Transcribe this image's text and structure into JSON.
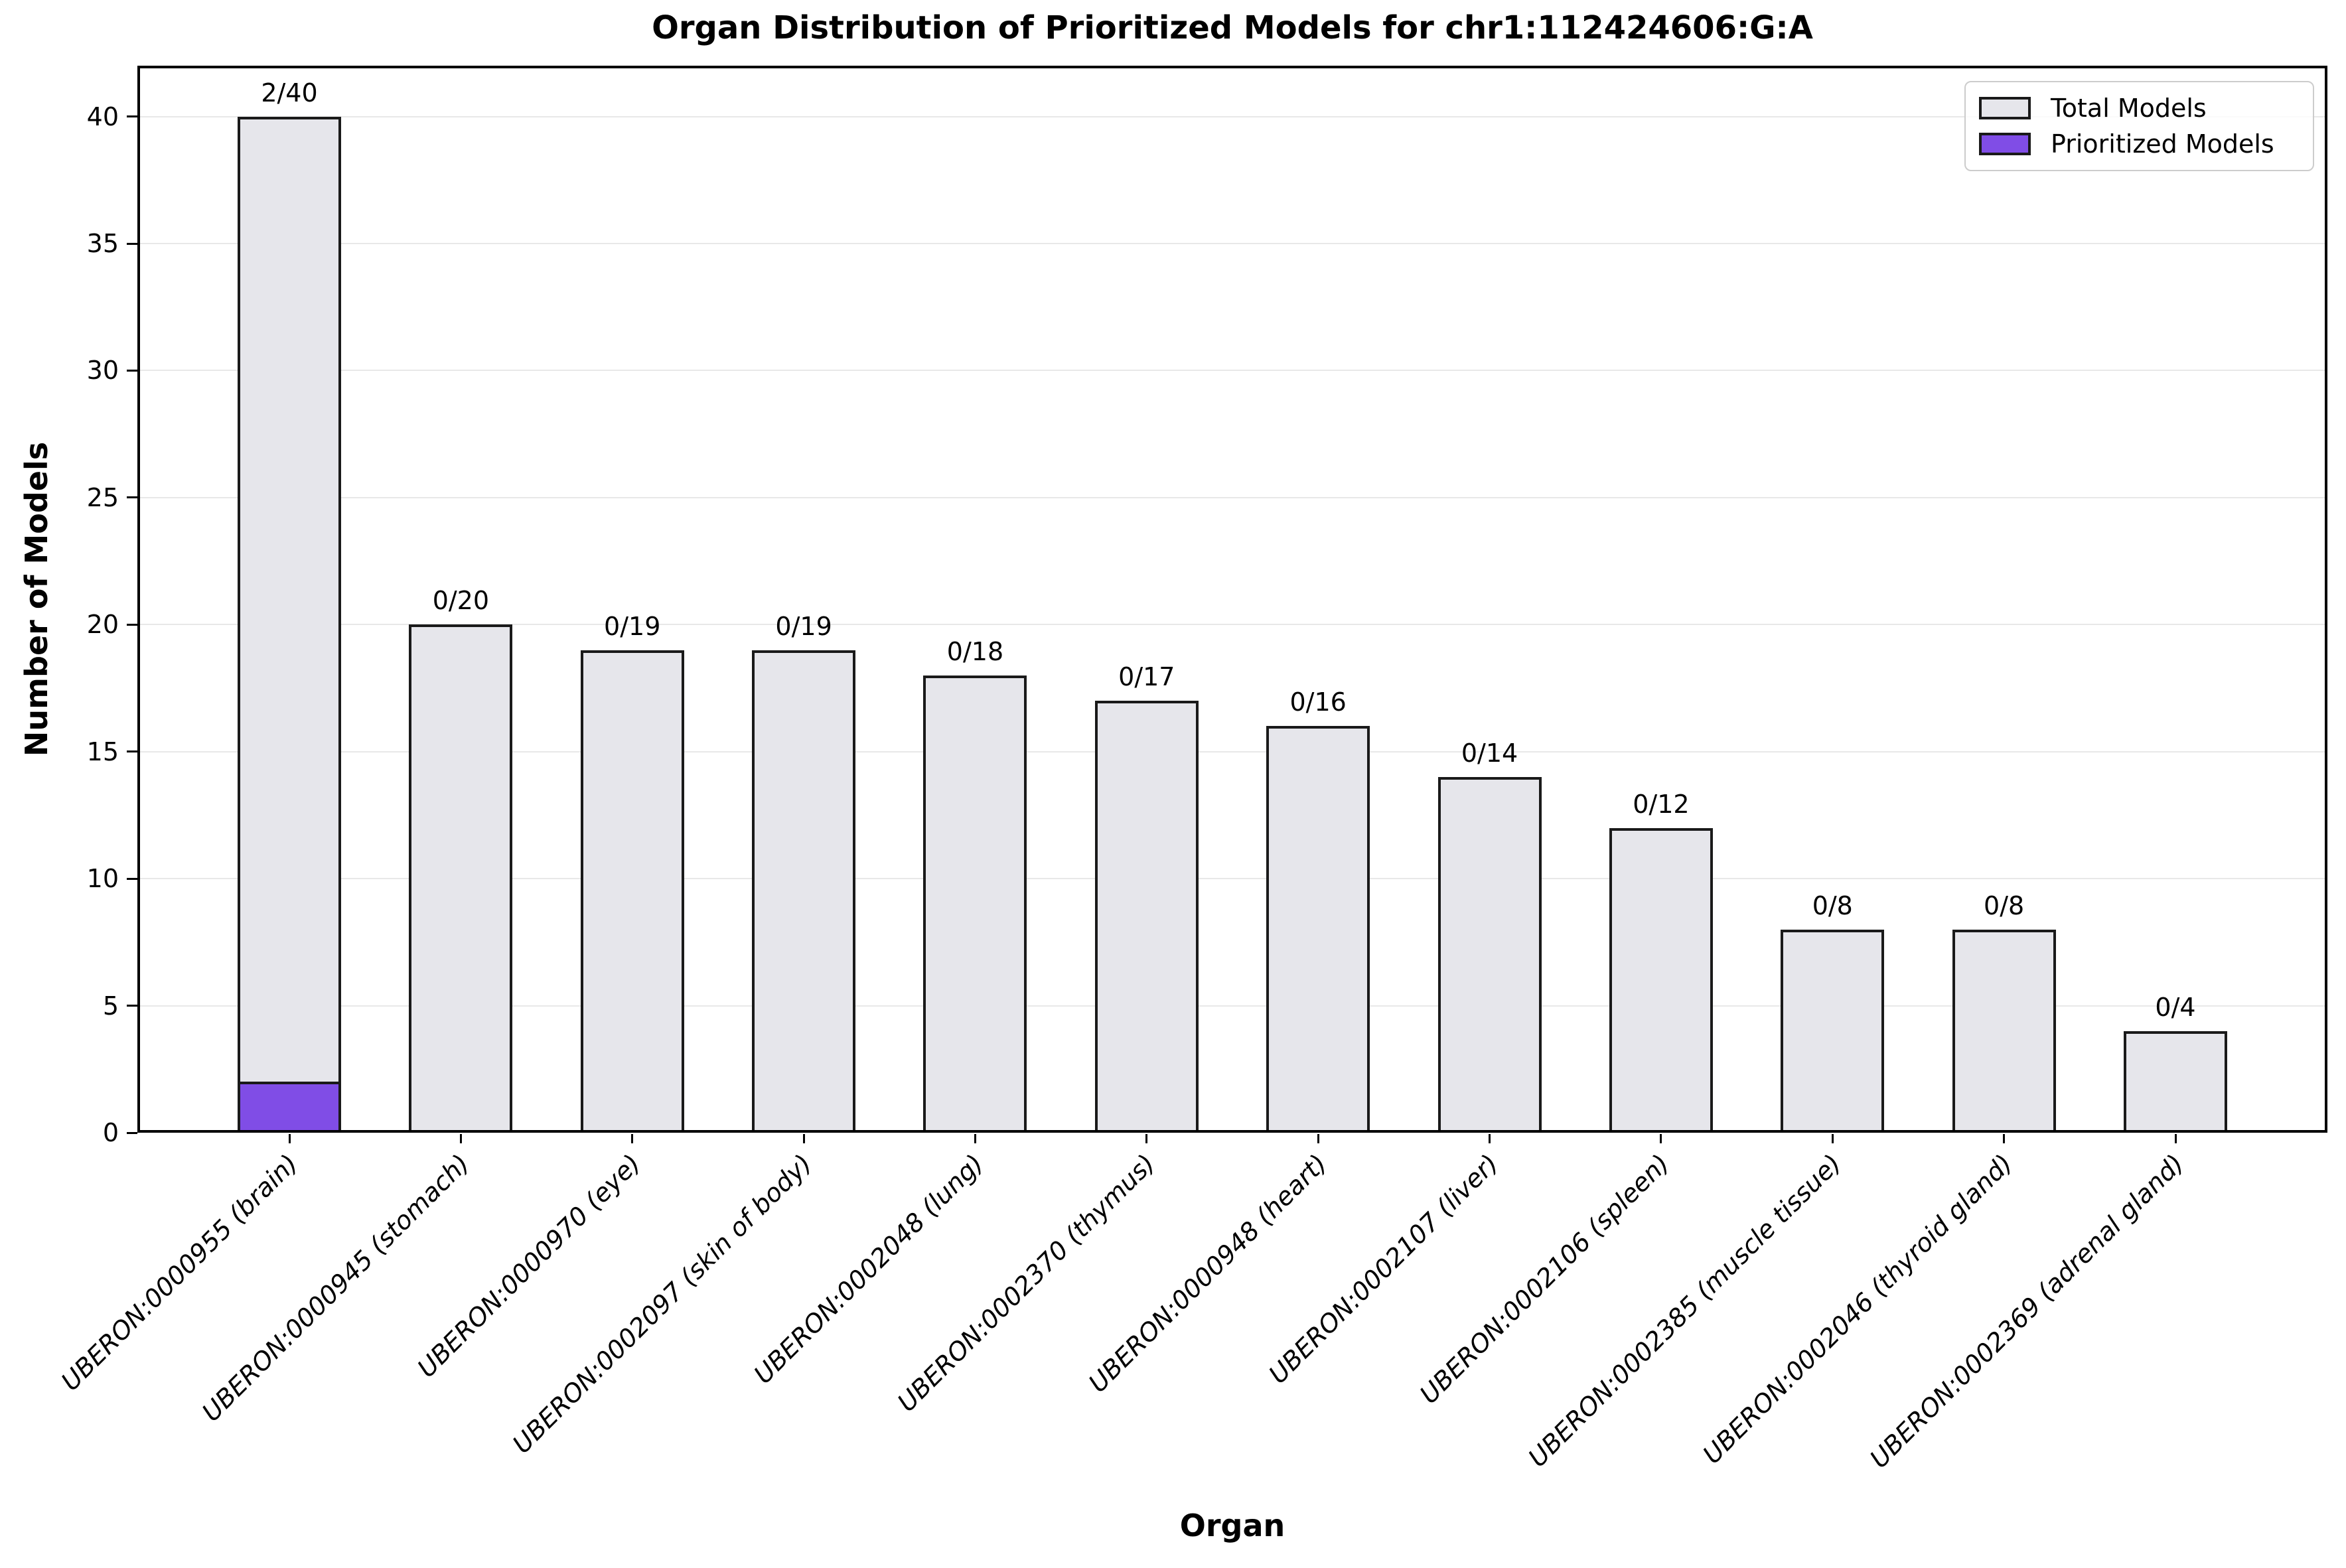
{
  "figure": {
    "title": "Organ Distribution of Prioritized Models for chr1:112424606:G:A",
    "xlabel": "Organ",
    "ylabel": "Number of Models"
  },
  "legend": {
    "items": [
      {
        "label": "Total Models",
        "color": "#e6e6eb"
      },
      {
        "label": "Prioritized Models",
        "color": "#804de6"
      }
    ],
    "position": "upper right"
  },
  "chart_data": {
    "type": "bar",
    "title": "Organ Distribution of Prioritized Models for chr1:112424606:G:A",
    "xlabel": "Organ",
    "ylabel": "Number of Models",
    "ylim": [
      0,
      42
    ],
    "yticks": [
      0,
      5,
      10,
      15,
      20,
      25,
      30,
      35,
      40
    ],
    "grid": true,
    "legend_position": "upper right",
    "categories": [
      "UBERON:0000955 (brain)",
      "UBERON:0000945 (stomach)",
      "UBERON:0000970 (eye)",
      "UBERON:0002097 (skin of body)",
      "UBERON:0002048 (lung)",
      "UBERON:0002370 (thymus)",
      "UBERON:0000948 (heart)",
      "UBERON:0002107 (liver)",
      "UBERON:0002106 (spleen)",
      "UBERON:0002385 (muscle tissue)",
      "UBERON:0002046 (thyroid gland)",
      "UBERON:0002369 (adrenal gland)"
    ],
    "series": [
      {
        "name": "Total Models",
        "color": "#e6e6eb",
        "values": [
          40,
          20,
          19,
          19,
          18,
          17,
          16,
          14,
          12,
          8,
          8,
          4
        ]
      },
      {
        "name": "Prioritized Models",
        "color": "#804de6",
        "values": [
          2,
          0,
          0,
          0,
          0,
          0,
          0,
          0,
          0,
          0,
          0,
          0
        ]
      }
    ],
    "bar_labels": [
      "2/40",
      "0/20",
      "0/19",
      "0/19",
      "0/18",
      "0/17",
      "0/16",
      "0/14",
      "0/12",
      "0/8",
      "0/8",
      "0/4"
    ],
    "bar_edge_color": "#1a1a1a",
    "x_tick_style": "italic"
  }
}
